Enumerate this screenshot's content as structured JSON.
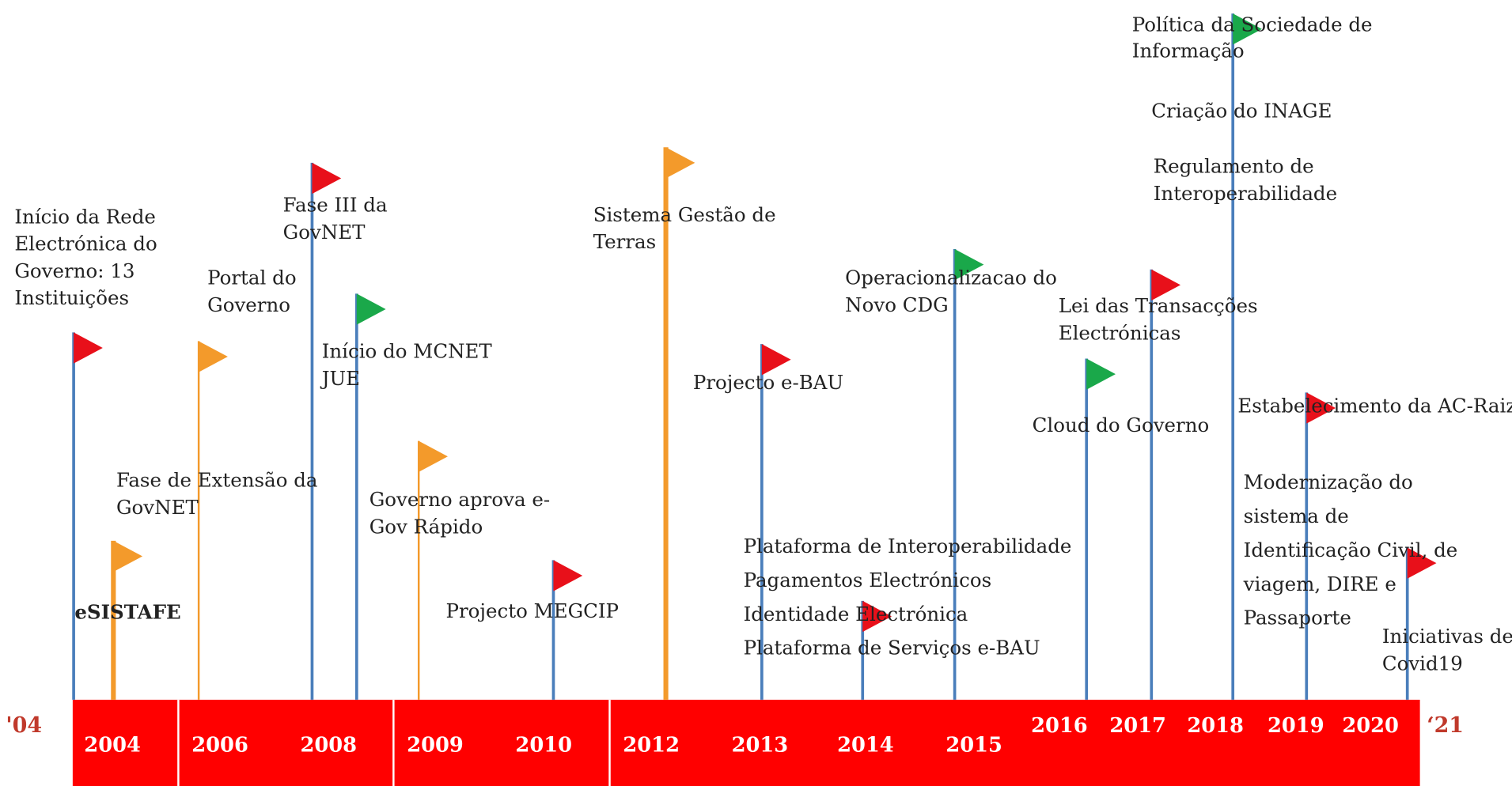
{
  "timeline": {
    "start_label": "'04",
    "end_label": "‘21",
    "years": [
      "2004",
      "2006",
      "2008",
      "2009",
      "2010",
      "2012",
      "2013",
      "2014",
      "2015",
      "2016",
      "2017",
      "2018",
      "2019",
      "2020"
    ],
    "events": [
      {
        "lines": [
          "Início da Rede",
          "Electrónica do",
          "Governo: 13",
          "Instituições"
        ]
      },
      {
        "lines": [
          "eSISTAFE"
        ]
      },
      {
        "lines": [
          "Fase de Extensão da",
          "GovNET"
        ]
      },
      {
        "lines": [
          "Portal do",
          "Governo"
        ]
      },
      {
        "lines": [
          "Fase III da",
          "GovNET"
        ]
      },
      {
        "lines": [
          "Início do MCNET",
          "JUE"
        ]
      },
      {
        "lines": [
          "Governo aprova e-",
          "Gov Rápido"
        ]
      },
      {
        "lines": [
          "Projecto MEGCIP"
        ]
      },
      {
        "lines": [
          "Sistema Gestão de",
          "Terras"
        ]
      },
      {
        "lines": [
          "Projecto e-BAU"
        ]
      },
      {
        "lines": [
          "Plataforma de Interoperabilidade",
          "Pagamentos Electrónicos",
          "Identidade Electrónica",
          "Plataforma de Serviços e-BAU"
        ]
      },
      {
        "lines": [
          "Operacionalizacao do",
          "Novo CDG"
        ]
      },
      {
        "lines": [
          "Cloud do Governo"
        ]
      },
      {
        "lines": [
          "Lei das Transacções",
          "Electrónicas"
        ]
      },
      {
        "lines": [
          "Política da Sociedade de",
          "Informação"
        ]
      },
      {
        "lines": [
          "Criação do INAGE"
        ]
      },
      {
        "lines": [
          "Regulamento de",
          "Interoperabilidade"
        ]
      },
      {
        "lines": [
          "Estabelecimento da AC-Raiz"
        ]
      },
      {
        "lines": [
          "Modernização do",
          "sistema de",
          "Identificação Civil, de",
          "viagem, DIRE e",
          "Passaporte"
        ]
      },
      {
        "lines": [
          "Iniciativas de",
          "Covid19"
        ]
      }
    ]
  }
}
